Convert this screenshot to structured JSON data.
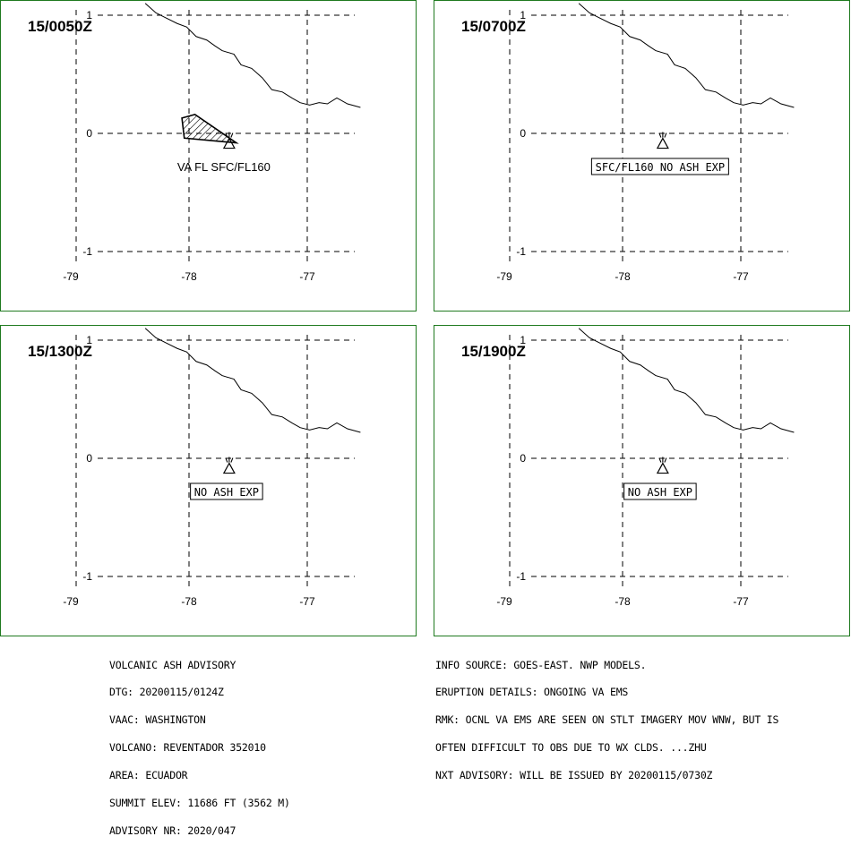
{
  "panels": [
    {
      "dtg": "15/0050Z",
      "label": "VA FL SFC/FL160",
      "label_boxed": false,
      "ash_area": true,
      "ash_polygon_lonlat": [
        [
          -78.06,
          0.13
        ],
        [
          -77.95,
          0.16
        ],
        [
          -77.6,
          -0.08
        ],
        [
          -78.04,
          -0.04
        ]
      ]
    },
    {
      "dtg": "15/0700Z",
      "label": "SFC/FL160 NO ASH EXP",
      "label_boxed": true,
      "ash_area": false
    },
    {
      "dtg": "15/1300Z",
      "label": "NO ASH EXP",
      "label_boxed": true,
      "ash_area": false
    },
    {
      "dtg": "15/1900Z",
      "label": "NO ASH EXP",
      "label_boxed": true,
      "ash_area": false
    }
  ],
  "map": {
    "lon_ticks": [
      "-79",
      "-78",
      "-77"
    ],
    "lat_ticks": [
      "1",
      "0",
      "-1"
    ],
    "lon_range": [
      -79.0,
      -76.4
    ],
    "lat_range": [
      -1.0,
      1.0
    ],
    "volcano_lonlat": [
      -77.66,
      -0.08
    ],
    "coastline_lonlat": [
      [
        -78.37,
        1.1
      ],
      [
        -78.28,
        1.02
      ],
      [
        -78.2,
        0.98
      ],
      [
        -78.1,
        0.93
      ],
      [
        -78.02,
        0.9
      ],
      [
        -77.94,
        0.82
      ],
      [
        -77.85,
        0.79
      ],
      [
        -77.78,
        0.74
      ],
      [
        -77.72,
        0.7
      ],
      [
        -77.62,
        0.67
      ],
      [
        -77.56,
        0.58
      ],
      [
        -77.47,
        0.55
      ],
      [
        -77.38,
        0.47
      ],
      [
        -77.3,
        0.37
      ],
      [
        -77.21,
        0.35
      ],
      [
        -77.13,
        0.3
      ],
      [
        -77.06,
        0.26
      ],
      [
        -76.98,
        0.24
      ],
      [
        -76.9,
        0.26
      ],
      [
        -76.83,
        0.25
      ],
      [
        -76.75,
        0.3
      ],
      [
        -76.66,
        0.25
      ],
      [
        -76.55,
        0.22
      ]
    ],
    "colors": {
      "frame": "#1f7a1f",
      "lines": "#000000",
      "background": "#ffffff"
    }
  },
  "advisory": {
    "lines": [
      "VOLCANIC ASH ADVISORY",
      "DTG: 20200115/0124Z",
      "VAAC: WASHINGTON",
      "VOLCANO: REVENTADOR 352010",
      "AREA: ECUADOR",
      "SUMMIT ELEV: 11686 FT (3562 M)",
      "ADVISORY NR: 2020/047"
    ]
  },
  "info": {
    "lines": [
      "INFO SOURCE: GOES-EAST. NWP MODELS.",
      "ERUPTION DETAILS: ONGOING VA EMS",
      "RMK: OCNL VA EMS ARE SEEN ON STLT IMAGERY MOV WNW, BUT IS",
      "OFTEN DIFFICULT TO OBS DUE TO WX CLDS. ...ZHU",
      "NXT ADVISORY: WILL BE ISSUED BY 20200115/0730Z"
    ]
  }
}
